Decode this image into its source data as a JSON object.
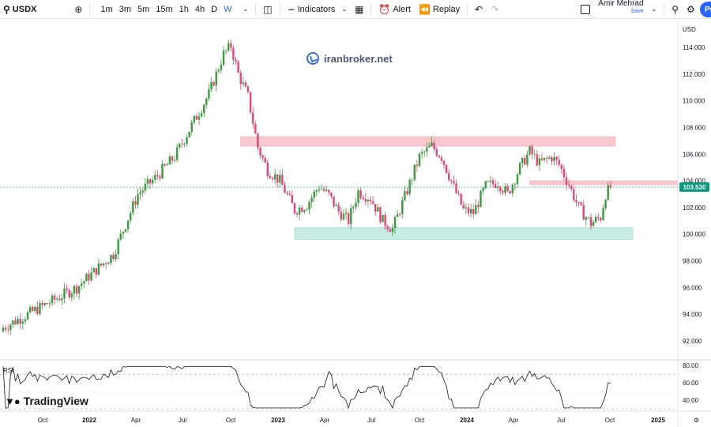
{
  "toolbar": {
    "symbol": "USDX",
    "intervals": [
      "1m",
      "3m",
      "5m",
      "15m",
      "1h",
      "4h",
      "D",
      "W"
    ],
    "active_interval": "W",
    "indicators_label": "Indicators",
    "alert_label": "Alert",
    "replay_label": "Replay",
    "user_name": "Amir Mehrad",
    "save_label": "Save",
    "publish_label": "Pu"
  },
  "watermark": {
    "text": "iranbroker.net"
  },
  "branding": {
    "text": "TradingView"
  },
  "rsi_label": "RSI",
  "colors": {
    "up": "#089981",
    "down": "#f23645",
    "up_candle": "#3c9a3c",
    "down_candle": "#e0457b",
    "resistance_zone": "#f9c8cf",
    "support_zone": "#c8ebe4",
    "rsi_line": "#131722",
    "rsi_overbought_fill": "#9fe3a2"
  },
  "chart_data": {
    "type": "candlestick",
    "currency": "USD",
    "current_price": "103.530",
    "ylim": [
      90.8,
      115.6
    ],
    "y_ticks": [
      "114.000",
      "112.000",
      "110.000",
      "108.000",
      "106.000",
      "104.000",
      "102.000",
      "100.000",
      "98.000",
      "96.000",
      "94.000",
      "92.000"
    ],
    "x_ticks": [
      {
        "label": "Oct",
        "bold": false
      },
      {
        "label": "2022",
        "bold": true
      },
      {
        "label": "Apr",
        "bold": false
      },
      {
        "label": "Jul",
        "bold": false
      },
      {
        "label": "Oct",
        "bold": false
      },
      {
        "label": "2023",
        "bold": true
      },
      {
        "label": "Apr",
        "bold": false
      },
      {
        "label": "Jul",
        "bold": false
      },
      {
        "label": "Oct",
        "bold": false
      },
      {
        "label": "2024",
        "bold": true
      },
      {
        "label": "Apr",
        "bold": false
      },
      {
        "label": "Jul",
        "bold": false
      },
      {
        "label": "Oct",
        "bold": false
      },
      {
        "label": "2025",
        "bold": true
      }
    ],
    "zones": [
      {
        "kind": "resistance",
        "from": 106.6,
        "to": 107.3,
        "start_week": 97,
        "end_week": 250
      },
      {
        "kind": "resistance",
        "from": 103.7,
        "to": 104.0,
        "start_week": 215,
        "end_week": 260
      },
      {
        "kind": "support",
        "from": 99.6,
        "to": 100.5,
        "start_week": 119,
        "end_week": 260
      }
    ],
    "rsi": {
      "ylim": [
        30,
        82
      ],
      "ticks": [
        "80.00",
        "60.00",
        "40.00"
      ],
      "overbought": 70,
      "oversold": 30
    },
    "key_points": [
      {
        "week": 0,
        "close": 93.0
      },
      {
        "week": 15,
        "close": 94.5
      },
      {
        "week": 30,
        "close": 96.0
      },
      {
        "week": 45,
        "close": 98.5
      },
      {
        "week": 55,
        "close": 103.0
      },
      {
        "week": 62,
        "close": 104.2
      },
      {
        "week": 70,
        "close": 105.8
      },
      {
        "week": 78,
        "close": 108.5
      },
      {
        "week": 84,
        "close": 110.5
      },
      {
        "week": 90,
        "close": 113.5
      },
      {
        "week": 93,
        "close": 114.1
      },
      {
        "week": 96,
        "close": 112.0
      },
      {
        "week": 100,
        "close": 110.3
      },
      {
        "week": 104,
        "close": 106.5
      },
      {
        "week": 108,
        "close": 104.8
      },
      {
        "week": 113,
        "close": 104.0
      },
      {
        "week": 119,
        "close": 101.8
      },
      {
        "week": 124,
        "close": 102.2
      },
      {
        "week": 129,
        "close": 103.6
      },
      {
        "week": 133,
        "close": 102.9
      },
      {
        "week": 137,
        "close": 101.7
      },
      {
        "week": 141,
        "close": 101.0
      },
      {
        "week": 145,
        "close": 103.2
      },
      {
        "week": 150,
        "close": 102.7
      },
      {
        "week": 155,
        "close": 101.0
      },
      {
        "week": 159,
        "close": 100.4
      },
      {
        "week": 164,
        "close": 102.8
      },
      {
        "week": 170,
        "close": 105.8
      },
      {
        "week": 175,
        "close": 106.6
      },
      {
        "week": 179,
        "close": 105.8
      },
      {
        "week": 184,
        "close": 103.5
      },
      {
        "week": 188,
        "close": 101.8
      },
      {
        "week": 192,
        "close": 101.6
      },
      {
        "week": 197,
        "close": 103.6
      },
      {
        "week": 202,
        "close": 103.9
      },
      {
        "week": 206,
        "close": 103.0
      },
      {
        "week": 211,
        "close": 105.0
      },
      {
        "week": 215,
        "close": 106.2
      },
      {
        "week": 219,
        "close": 105.3
      },
      {
        "week": 224,
        "close": 105.8
      },
      {
        "week": 227,
        "close": 105.2
      },
      {
        "week": 231,
        "close": 103.7
      },
      {
        "week": 235,
        "close": 102.0
      },
      {
        "week": 240,
        "close": 100.8
      },
      {
        "week": 244,
        "close": 101.3
      },
      {
        "week": 246,
        "close": 103.0
      },
      {
        "week": 248,
        "close": 103.5
      }
    ]
  }
}
